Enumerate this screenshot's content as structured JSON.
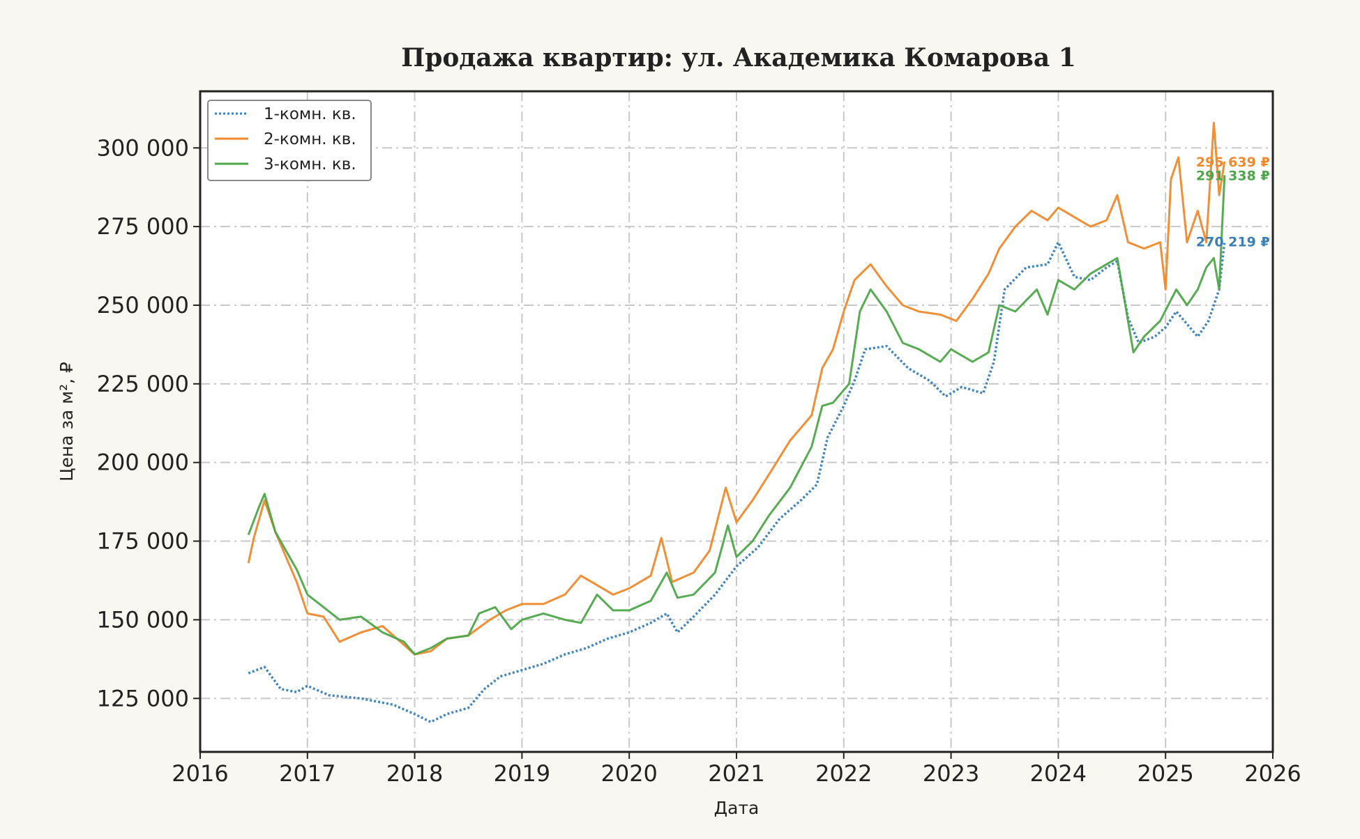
{
  "chart_data": {
    "type": "line",
    "title": "Продажа квартир: ул. Академика Комарова 1",
    "xlabel": "Дата",
    "ylabel": "Цена за м², ₽",
    "xlim": [
      2016,
      2026
    ],
    "ylim": [
      108000,
      318000
    ],
    "x_ticks": [
      2016,
      2017,
      2018,
      2019,
      2020,
      2021,
      2022,
      2023,
      2024,
      2025,
      2026
    ],
    "x_tick_labels": [
      "2016",
      "2017",
      "2018",
      "2019",
      "2020",
      "2021",
      "2022",
      "2023",
      "2024",
      "2025",
      "2026"
    ],
    "y_ticks": [
      125000,
      150000,
      175000,
      200000,
      225000,
      250000,
      275000,
      300000
    ],
    "y_tick_labels": [
      "125 000",
      "150 000",
      "175 000",
      "200 000",
      "225 000",
      "250 000",
      "275 000",
      "300 000"
    ],
    "grid": true,
    "legend_position": "top-left",
    "series": [
      {
        "name": "1-комн. кв.",
        "color": "#3a7fb5",
        "style": "dotted",
        "end_label": "270 219 ₽",
        "points": [
          [
            2016.45,
            133000
          ],
          [
            2016.6,
            135000
          ],
          [
            2016.75,
            128000
          ],
          [
            2016.9,
            127000
          ],
          [
            2017.0,
            129000
          ],
          [
            2017.2,
            126000
          ],
          [
            2017.5,
            125000
          ],
          [
            2017.8,
            123000
          ],
          [
            2018.0,
            120000
          ],
          [
            2018.15,
            117500
          ],
          [
            2018.3,
            120000
          ],
          [
            2018.5,
            122000
          ],
          [
            2018.65,
            128000
          ],
          [
            2018.8,
            132000
          ],
          [
            2019.0,
            134000
          ],
          [
            2019.2,
            136000
          ],
          [
            2019.4,
            139000
          ],
          [
            2019.6,
            141000
          ],
          [
            2019.8,
            144000
          ],
          [
            2020.0,
            146000
          ],
          [
            2020.2,
            149000
          ],
          [
            2020.35,
            152000
          ],
          [
            2020.45,
            146000
          ],
          [
            2020.6,
            151000
          ],
          [
            2020.8,
            158000
          ],
          [
            2021.0,
            167000
          ],
          [
            2021.2,
            173000
          ],
          [
            2021.4,
            182000
          ],
          [
            2021.6,
            188000
          ],
          [
            2021.75,
            193000
          ],
          [
            2021.85,
            208000
          ],
          [
            2022.0,
            218000
          ],
          [
            2022.1,
            226000
          ],
          [
            2022.2,
            236000
          ],
          [
            2022.4,
            237000
          ],
          [
            2022.6,
            230000
          ],
          [
            2022.8,
            226000
          ],
          [
            2022.95,
            221000
          ],
          [
            2023.1,
            224000
          ],
          [
            2023.3,
            222000
          ],
          [
            2023.4,
            232000
          ],
          [
            2023.5,
            255000
          ],
          [
            2023.7,
            262000
          ],
          [
            2023.9,
            263000
          ],
          [
            2024.0,
            270000
          ],
          [
            2024.15,
            259000
          ],
          [
            2024.3,
            258000
          ],
          [
            2024.45,
            262000
          ],
          [
            2024.55,
            264000
          ],
          [
            2024.65,
            246000
          ],
          [
            2024.75,
            238000
          ],
          [
            2024.9,
            240000
          ],
          [
            2025.0,
            243000
          ],
          [
            2025.1,
            248000
          ],
          [
            2025.2,
            244000
          ],
          [
            2025.3,
            240000
          ],
          [
            2025.4,
            245000
          ],
          [
            2025.5,
            255000
          ],
          [
            2025.55,
            270219
          ]
        ]
      },
      {
        "name": "2-комн. кв.",
        "color": "#f0892c",
        "style": "solid",
        "end_label": "295 639 ₽",
        "points": [
          [
            2016.45,
            168000
          ],
          [
            2016.5,
            176000
          ],
          [
            2016.6,
            188000
          ],
          [
            2016.7,
            178000
          ],
          [
            2016.8,
            170000
          ],
          [
            2016.9,
            162000
          ],
          [
            2017.0,
            152000
          ],
          [
            2017.15,
            151000
          ],
          [
            2017.3,
            143000
          ],
          [
            2017.5,
            146000
          ],
          [
            2017.7,
            148000
          ],
          [
            2017.9,
            142000
          ],
          [
            2018.0,
            139000
          ],
          [
            2018.15,
            140000
          ],
          [
            2018.3,
            144000
          ],
          [
            2018.5,
            145000
          ],
          [
            2018.7,
            150000
          ],
          [
            2018.85,
            153000
          ],
          [
            2019.0,
            155000
          ],
          [
            2019.2,
            155000
          ],
          [
            2019.4,
            158000
          ],
          [
            2019.55,
            164000
          ],
          [
            2019.7,
            161000
          ],
          [
            2019.85,
            158000
          ],
          [
            2020.0,
            160000
          ],
          [
            2020.2,
            164000
          ],
          [
            2020.3,
            176000
          ],
          [
            2020.4,
            162000
          ],
          [
            2020.6,
            165000
          ],
          [
            2020.75,
            172000
          ],
          [
            2020.9,
            192000
          ],
          [
            2021.0,
            181000
          ],
          [
            2021.15,
            188000
          ],
          [
            2021.3,
            196000
          ],
          [
            2021.5,
            207000
          ],
          [
            2021.7,
            215000
          ],
          [
            2021.8,
            230000
          ],
          [
            2021.9,
            236000
          ],
          [
            2022.0,
            248000
          ],
          [
            2022.1,
            258000
          ],
          [
            2022.25,
            263000
          ],
          [
            2022.4,
            256000
          ],
          [
            2022.55,
            250000
          ],
          [
            2022.7,
            248000
          ],
          [
            2022.9,
            247000
          ],
          [
            2023.05,
            245000
          ],
          [
            2023.2,
            252000
          ],
          [
            2023.35,
            260000
          ],
          [
            2023.45,
            268000
          ],
          [
            2023.6,
            275000
          ],
          [
            2023.75,
            280000
          ],
          [
            2023.9,
            277000
          ],
          [
            2024.0,
            281000
          ],
          [
            2024.15,
            278000
          ],
          [
            2024.3,
            275000
          ],
          [
            2024.45,
            277000
          ],
          [
            2024.55,
            285000
          ],
          [
            2024.65,
            270000
          ],
          [
            2024.8,
            268000
          ],
          [
            2024.95,
            270000
          ],
          [
            2025.0,
            255000
          ],
          [
            2025.05,
            290000
          ],
          [
            2025.12,
            297000
          ],
          [
            2025.2,
            270000
          ],
          [
            2025.3,
            280000
          ],
          [
            2025.38,
            270000
          ],
          [
            2025.45,
            308000
          ],
          [
            2025.5,
            285000
          ],
          [
            2025.55,
            295639
          ]
        ]
      },
      {
        "name": "3-комн. кв.",
        "color": "#4ea64a",
        "style": "solid",
        "end_label": "291 338 ₽",
        "points": [
          [
            2016.45,
            177000
          ],
          [
            2016.55,
            186000
          ],
          [
            2016.6,
            190000
          ],
          [
            2016.7,
            178000
          ],
          [
            2016.8,
            172000
          ],
          [
            2016.9,
            166000
          ],
          [
            2017.0,
            158000
          ],
          [
            2017.15,
            154000
          ],
          [
            2017.3,
            150000
          ],
          [
            2017.5,
            151000
          ],
          [
            2017.7,
            146000
          ],
          [
            2017.9,
            143000
          ],
          [
            2018.0,
            139000
          ],
          [
            2018.15,
            141000
          ],
          [
            2018.3,
            144000
          ],
          [
            2018.5,
            145000
          ],
          [
            2018.6,
            152000
          ],
          [
            2018.75,
            154000
          ],
          [
            2018.9,
            147000
          ],
          [
            2019.0,
            150000
          ],
          [
            2019.2,
            152000
          ],
          [
            2019.4,
            150000
          ],
          [
            2019.55,
            149000
          ],
          [
            2019.7,
            158000
          ],
          [
            2019.85,
            153000
          ],
          [
            2020.0,
            153000
          ],
          [
            2020.2,
            156000
          ],
          [
            2020.35,
            165000
          ],
          [
            2020.45,
            157000
          ],
          [
            2020.6,
            158000
          ],
          [
            2020.8,
            165000
          ],
          [
            2020.92,
            180000
          ],
          [
            2021.0,
            170000
          ],
          [
            2021.15,
            175000
          ],
          [
            2021.3,
            183000
          ],
          [
            2021.5,
            192000
          ],
          [
            2021.7,
            205000
          ],
          [
            2021.8,
            218000
          ],
          [
            2021.9,
            219000
          ],
          [
            2022.05,
            225000
          ],
          [
            2022.15,
            248000
          ],
          [
            2022.25,
            255000
          ],
          [
            2022.4,
            248000
          ],
          [
            2022.55,
            238000
          ],
          [
            2022.7,
            236000
          ],
          [
            2022.9,
            232000
          ],
          [
            2023.0,
            236000
          ],
          [
            2023.2,
            232000
          ],
          [
            2023.35,
            235000
          ],
          [
            2023.45,
            250000
          ],
          [
            2023.6,
            248000
          ],
          [
            2023.8,
            255000
          ],
          [
            2023.9,
            247000
          ],
          [
            2024.0,
            258000
          ],
          [
            2024.15,
            255000
          ],
          [
            2024.3,
            260000
          ],
          [
            2024.45,
            263000
          ],
          [
            2024.55,
            265000
          ],
          [
            2024.6,
            255000
          ],
          [
            2024.7,
            235000
          ],
          [
            2024.8,
            240000
          ],
          [
            2024.95,
            245000
          ],
          [
            2025.1,
            255000
          ],
          [
            2025.2,
            250000
          ],
          [
            2025.3,
            255000
          ],
          [
            2025.38,
            262000
          ],
          [
            2025.45,
            265000
          ],
          [
            2025.5,
            255000
          ],
          [
            2025.55,
            291338
          ]
        ]
      }
    ]
  }
}
